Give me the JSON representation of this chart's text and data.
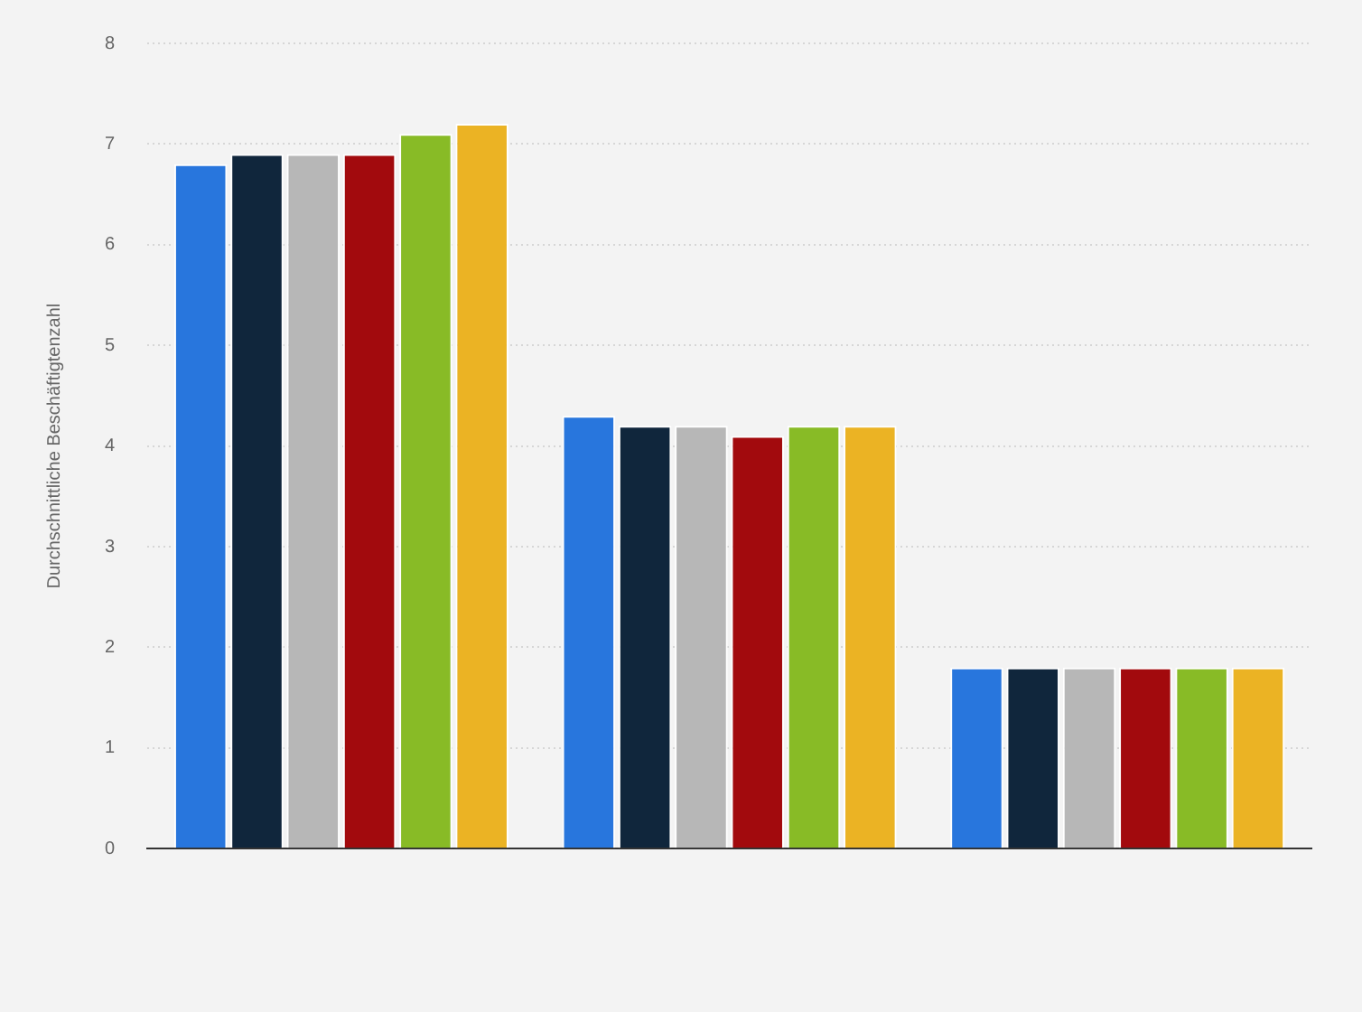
{
  "chart_data": {
    "type": "bar",
    "ylabel": "Durchschnittliche Beschäftigtenzahl",
    "categories": [
      null,
      null,
      null
    ],
    "series": [
      {
        "color": "#2876dd",
        "values": [
          6.8,
          4.3,
          1.8
        ]
      },
      {
        "color": "#10263c",
        "values": [
          6.9,
          4.2,
          1.8
        ]
      },
      {
        "color": "#b7b7b7",
        "values": [
          6.9,
          4.2,
          1.8
        ]
      },
      {
        "color": "#a20a0d",
        "values": [
          6.9,
          4.1,
          1.8
        ]
      },
      {
        "color": "#88bb26",
        "values": [
          7.1,
          4.2,
          1.8
        ]
      },
      {
        "color": "#ebb324",
        "values": [
          7.2,
          4.2,
          1.8
        ]
      }
    ],
    "ylim": [
      0,
      8
    ],
    "yticks": [
      0,
      1,
      2,
      3,
      4,
      5,
      6,
      7,
      8
    ],
    "grid": "y",
    "legend": false
  }
}
